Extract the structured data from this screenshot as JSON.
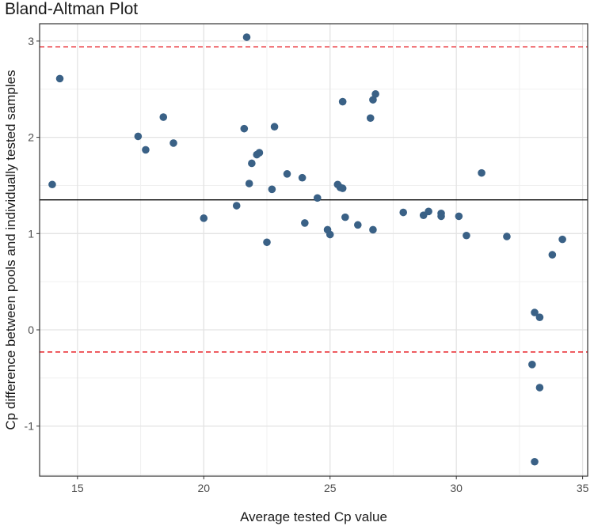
{
  "chart_data": {
    "type": "scatter",
    "title": "Bland-Altman Plot",
    "xlabel": "Average tested Cp value",
    "ylabel": "Cp difference between pools and individually tested samples",
    "xlim": [
      13.5,
      35.2
    ],
    "ylim": [
      -1.52,
      3.18
    ],
    "xticks": [
      15,
      20,
      25,
      30,
      35
    ],
    "yticks": [
      -1,
      0,
      1,
      2,
      3
    ],
    "grid": true,
    "point_color": "#3a6186",
    "mean_line": {
      "value": 1.35,
      "color": "#000000",
      "style": "solid"
    },
    "limits_of_agreement": {
      "upper": 2.94,
      "lower": -0.23,
      "color": "#e8252b",
      "style": "dashed"
    },
    "points": [
      {
        "x": 14.0,
        "y": 1.51
      },
      {
        "x": 14.3,
        "y": 2.61
      },
      {
        "x": 17.4,
        "y": 2.01
      },
      {
        "x": 17.7,
        "y": 1.87
      },
      {
        "x": 18.4,
        "y": 2.21
      },
      {
        "x": 18.8,
        "y": 1.94
      },
      {
        "x": 20.0,
        "y": 1.16
      },
      {
        "x": 21.3,
        "y": 1.29
      },
      {
        "x": 21.6,
        "y": 2.09
      },
      {
        "x": 21.7,
        "y": 3.04
      },
      {
        "x": 21.8,
        "y": 1.52
      },
      {
        "x": 21.9,
        "y": 1.73
      },
      {
        "x": 22.1,
        "y": 1.82
      },
      {
        "x": 22.2,
        "y": 1.84
      },
      {
        "x": 22.5,
        "y": 0.91
      },
      {
        "x": 22.7,
        "y": 1.46
      },
      {
        "x": 22.8,
        "y": 2.11
      },
      {
        "x": 23.3,
        "y": 1.62
      },
      {
        "x": 23.9,
        "y": 1.58
      },
      {
        "x": 24.0,
        "y": 1.11
      },
      {
        "x": 24.5,
        "y": 1.37
      },
      {
        "x": 24.9,
        "y": 1.04
      },
      {
        "x": 25.0,
        "y": 0.99
      },
      {
        "x": 25.3,
        "y": 1.51
      },
      {
        "x": 25.4,
        "y": 1.48
      },
      {
        "x": 25.5,
        "y": 2.37
      },
      {
        "x": 25.5,
        "y": 1.47
      },
      {
        "x": 25.6,
        "y": 1.17
      },
      {
        "x": 26.1,
        "y": 1.09
      },
      {
        "x": 26.6,
        "y": 2.2
      },
      {
        "x": 26.7,
        "y": 1.04
      },
      {
        "x": 26.7,
        "y": 2.39
      },
      {
        "x": 26.8,
        "y": 2.45
      },
      {
        "x": 27.9,
        "y": 1.22
      },
      {
        "x": 28.7,
        "y": 1.19
      },
      {
        "x": 28.9,
        "y": 1.23
      },
      {
        "x": 29.4,
        "y": 1.18
      },
      {
        "x": 29.4,
        "y": 1.21
      },
      {
        "x": 30.1,
        "y": 1.18
      },
      {
        "x": 30.4,
        "y": 0.98
      },
      {
        "x": 31.0,
        "y": 1.63
      },
      {
        "x": 32.0,
        "y": 0.97
      },
      {
        "x": 33.0,
        "y": -0.36
      },
      {
        "x": 33.1,
        "y": -1.37
      },
      {
        "x": 33.1,
        "y": 0.18
      },
      {
        "x": 33.3,
        "y": 0.13
      },
      {
        "x": 33.3,
        "y": -0.6
      },
      {
        "x": 33.8,
        "y": 0.78
      },
      {
        "x": 34.2,
        "y": 0.94
      }
    ]
  }
}
